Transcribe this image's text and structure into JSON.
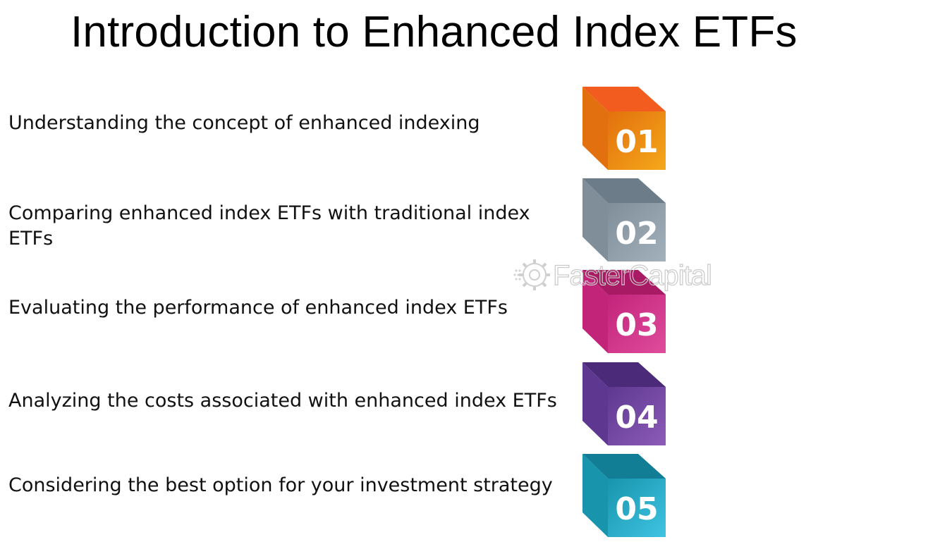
{
  "title": "Introduction to Enhanced Index ETFs",
  "watermark": "FasterCapital",
  "items": [
    {
      "text": "Understanding the concept of enhanced indexing",
      "number": "01",
      "colors": {
        "top": "#f25c1e",
        "left": "#e2700e",
        "front": "#f5a81a"
      }
    },
    {
      "text": "Comparing enhanced index ETFs with traditional index ETFs",
      "number": "02",
      "colors": {
        "top": "#6c7c89",
        "left": "#808e99",
        "front": "#a3b1bd"
      }
    },
    {
      "text": "Evaluating the performance of enhanced index ETFs",
      "number": "03",
      "colors": {
        "top": "#a81a64",
        "left": "#c2247a",
        "front": "#e04c9c"
      }
    },
    {
      "text": "Analyzing the costs associated with enhanced index ETFs",
      "number": "04",
      "colors": {
        "top": "#4c2a7a",
        "left": "#5e3890",
        "front": "#8c5cb8"
      }
    },
    {
      "text": "Considering the best option for your investment strategy",
      "number": "05",
      "colors": {
        "top": "#127e96",
        "left": "#1894ad",
        "front": "#3fc4e2"
      }
    }
  ]
}
